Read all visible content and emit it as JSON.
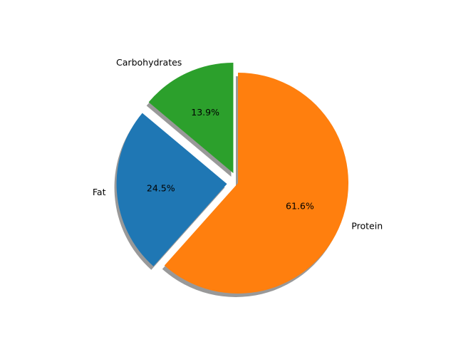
{
  "chart_data": {
    "type": "pie",
    "slices": [
      {
        "label": "Carbohydrates",
        "value": 13.9,
        "pct_label": "13.9%",
        "color": "#2ca02c",
        "explode": 0.1
      },
      {
        "label": "Fat",
        "value": 24.5,
        "pct_label": "24.5%",
        "color": "#1f77b4",
        "explode": 0.1
      },
      {
        "label": "Protein",
        "value": 61.6,
        "pct_label": "61.6%",
        "color": "#ff7f0e",
        "explode": 0
      }
    ],
    "start_angle_deg": 90,
    "direction": "counterclockwise",
    "shadow": true,
    "legend": "none"
  }
}
